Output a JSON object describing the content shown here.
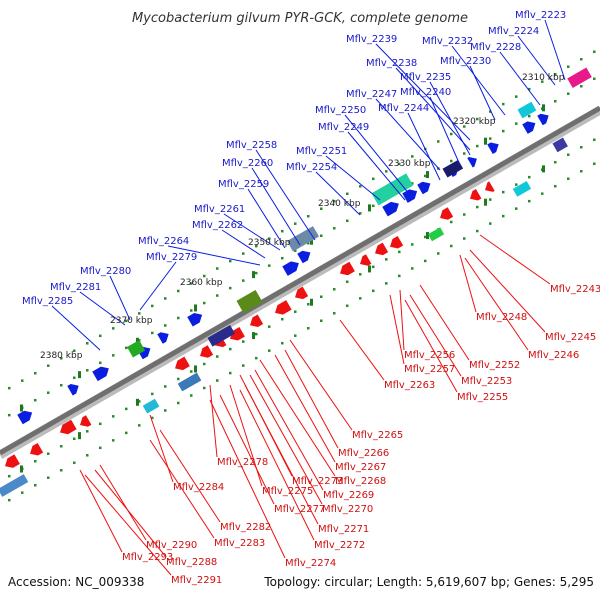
{
  "title": "Mycobacterium gilvum PYR-GCK, complete genome",
  "footer": {
    "accession": "Accession: NC_009338",
    "summary": "Topology: circular; Length: 5,619,607 bp; Genes: 5,295"
  },
  "ticks": [
    "2310 kbp",
    "2320 kbp",
    "2330 kbp",
    "2340 kbp",
    "2350 kbp",
    "2360 kbp",
    "2370 kbp",
    "2380 kbp"
  ],
  "blue_labels": [
    "Mflv_2223",
    "Mflv_2224",
    "Mflv_2228",
    "Mflv_2232",
    "Mflv_2239",
    "Mflv_2238",
    "Mflv_2230",
    "Mflv_2235",
    "Mflv_2240",
    "Mflv_2247",
    "Mflv_2244",
    "Mflv_2250",
    "Mflv_2249",
    "Mflv_2258",
    "Mflv_2251",
    "Mflv_2260",
    "Mflv_2254",
    "Mflv_2259",
    "Mflv_2261",
    "Mflv_2262",
    "Mflv_2264",
    "Mflv_2279",
    "Mflv_2280",
    "Mflv_2281",
    "Mflv_2285"
  ],
  "red_labels": [
    "Mflv_2243",
    "Mflv_2248",
    "Mflv_2245",
    "Mflv_2246",
    "Mflv_2256",
    "Mflv_2252",
    "Mflv_2257",
    "Mflv_2253",
    "Mflv_2263",
    "Mflv_2255",
    "Mflv_2265",
    "Mflv_2266",
    "Mflv_2267",
    "Mflv_2278",
    "Mflv_2268",
    "Mflv_2273",
    "Mflv_2269",
    "Mflv_2275",
    "Mflv_2284",
    "Mflv_2270",
    "Mflv_2277",
    "Mflv_2271",
    "Mflv_2282",
    "Mflv_2272",
    "Mflv_2283",
    "Mflv_2290",
    "Mflv_2274",
    "Mflv_2288",
    "Mflv_2293",
    "Mflv_2291"
  ],
  "colors": {
    "forward": "#0a1ee0",
    "reverse": "#ee1111",
    "backbone": "#8a8a8a",
    "tick_dots": "#2a8a2a"
  }
}
